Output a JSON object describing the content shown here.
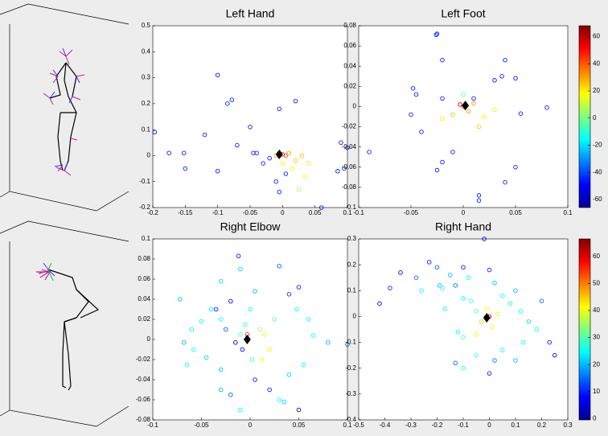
{
  "chart_data": [
    {
      "type": "scatter",
      "title": "Left Hand",
      "xlim": [
        -0.2,
        0.1
      ],
      "xticks": [
        -0.2,
        -0.15,
        -0.1,
        -0.05,
        0,
        0.05,
        0.1
      ],
      "ylim": [
        -0.2,
        0.5
      ],
      "yticks": [
        -0.2,
        -0.1,
        0,
        0.1,
        0.2,
        0.3,
        0.4,
        0.5
      ],
      "clim": [
        -66,
        68
      ],
      "x": [
        -0.197,
        -0.175,
        -0.152,
        -0.15,
        -0.1,
        -0.085,
        -0.078,
        -0.12,
        -0.07,
        -0.05,
        -0.045,
        -0.04,
        -0.1,
        -0.005,
        0.02,
        -0.02,
        -0.01,
        -0.005,
        0.005,
        0.06,
        0.085,
        0.09,
        0.1,
        0.095,
        -0.03,
        0.01,
        0.02,
        0.03,
        0.015,
        0.035,
        0.025,
        0.04,
        0.005,
        0.0,
        -0.01,
        0.0
      ],
      "y": [
        0.09,
        0.01,
        0.01,
        -0.05,
        0.31,
        0.2,
        0.215,
        0.08,
        0.04,
        0.11,
        0.01,
        0.01,
        -0.06,
        0.18,
        0.21,
        -0.01,
        -0.1,
        -0.14,
        -0.07,
        -0.2,
        -0.06,
        0.05,
        0.03,
        -0.05,
        -0.03,
        0.01,
        -0.02,
        0.0,
        -0.05,
        -0.08,
        -0.13,
        -0.03,
        0.0,
        0.005,
        0.0,
        -0.03
      ],
      "c": [
        -45,
        -45,
        -45,
        -45,
        -48,
        -45,
        -45,
        -45,
        -45,
        -45,
        -45,
        -45,
        -45,
        -45,
        -45,
        -45,
        -45,
        -45,
        -45,
        -45,
        -45,
        -45,
        -45,
        -45,
        -45,
        30,
        25,
        25,
        20,
        15,
        5,
        20,
        40,
        50,
        30,
        20
      ],
      "marker": {
        "x": -0.005,
        "y": 0.005
      }
    },
    {
      "type": "scatter",
      "title": "Left Foot",
      "xlim": [
        -0.1,
        0.1
      ],
      "xticks": [
        -0.1,
        -0.05,
        0,
        0.05,
        0.1
      ],
      "ylim": [
        -0.1,
        0.08
      ],
      "yticks": [
        -0.1,
        -0.08,
        -0.06,
        -0.04,
        -0.02,
        0,
        0.02,
        0.04,
        0.06,
        0.08
      ],
      "clim": [
        -66,
        68
      ],
      "colorbar_ticks": [
        -60,
        -40,
        -20,
        0,
        20,
        40,
        60
      ],
      "x": [
        -0.025,
        -0.026,
        -0.02,
        0.04,
        -0.09,
        -0.048,
        -0.045,
        -0.05,
        -0.04,
        -0.02,
        0.01,
        0.03,
        0.037,
        0.05,
        0.08,
        0.055,
        -0.025,
        -0.02,
        -0.01,
        0.05,
        0.04,
        0.015,
        0.015,
        0.0,
        0.0,
        0.005,
        -0.01,
        0.01,
        0.02,
        0.015,
        -0.02,
        0.03,
        -0.003
      ],
      "y": [
        0.072,
        0.071,
        0.046,
        0.046,
        -0.045,
        0.018,
        0.012,
        -0.008,
        -0.025,
        0.008,
        0.008,
        0.026,
        0.03,
        0.028,
        -0.001,
        -0.007,
        -0.063,
        -0.055,
        -0.045,
        -0.06,
        -0.075,
        -0.088,
        -0.093,
        0.012,
        0.0,
        -0.005,
        -0.008,
        0.003,
        -0.01,
        -0.02,
        -0.012,
        -0.003,
        0.002
      ],
      "c": [
        -45,
        -45,
        -45,
        -45,
        -45,
        -45,
        -45,
        -45,
        -45,
        -45,
        -45,
        -45,
        -45,
        -45,
        -45,
        -45,
        -45,
        -45,
        -45,
        -45,
        -45,
        -45,
        -45,
        0,
        35,
        30,
        25,
        30,
        20,
        25,
        20,
        10,
        55
      ],
      "marker": {
        "x": 0.002,
        "y": 0.001
      }
    },
    {
      "type": "scatter",
      "title": "Right Elbow",
      "xlim": [
        -0.1,
        0.1
      ],
      "xticks": [
        -0.1,
        -0.05,
        0,
        0.05,
        0.1
      ],
      "ylim": [
        -0.08,
        0.1
      ],
      "yticks": [
        -0.08,
        -0.06,
        -0.04,
        -0.02,
        0,
        0.02,
        0.04,
        0.06,
        0.08,
        0.1
      ],
      "clim": [
        -0.5,
        66.5
      ],
      "x": [
        -0.072,
        -0.068,
        -0.065,
        -0.06,
        -0.058,
        -0.05,
        -0.045,
        -0.04,
        -0.035,
        -0.03,
        -0.03,
        -0.025,
        -0.02,
        -0.012,
        -0.01,
        -0.015,
        -0.01,
        -0.005,
        0.0,
        0.005,
        0.01,
        0.015,
        0.02,
        0.025,
        0.03,
        0.04,
        0.05,
        0.048,
        0.06,
        0.065,
        0.08,
        0.1,
        0.055,
        0.04,
        0.03,
        0.02,
        0.005,
        -0.01,
        -0.02,
        -0.03,
        -0.03,
        0.05,
        0.035,
        -0.008,
        0.002,
        0.012,
        -0.003
      ],
      "y": [
        0.04,
        -0.003,
        -0.025,
        0.01,
        -0.01,
        0.018,
        -0.018,
        0.03,
        0.03,
        0.02,
        0.058,
        0.01,
        0.038,
        0.083,
        0.07,
        -0.003,
        0.005,
        0.015,
        0.03,
        0.048,
        0.01,
        0.005,
        -0.01,
        0.02,
        0.073,
        0.045,
        0.052,
        0.03,
        0.02,
        0.004,
        -0.003,
        -0.005,
        -0.025,
        -0.035,
        -0.06,
        -0.05,
        -0.04,
        -0.07,
        -0.055,
        -0.03,
        -0.05,
        -0.07,
        -0.062,
        -0.01,
        -0.02,
        -0.02,
        0.005
      ],
      "c": [
        20,
        20,
        25,
        25,
        25,
        25,
        22,
        25,
        10,
        25,
        22,
        15,
        8,
        10,
        22,
        5,
        30,
        28,
        25,
        20,
        35,
        40,
        42,
        30,
        15,
        12,
        10,
        25,
        25,
        25,
        20,
        15,
        25,
        22,
        25,
        10,
        10,
        25,
        15,
        20,
        20,
        8,
        22,
        8,
        28,
        40,
        55
      ],
      "marker": {
        "x": -0.003,
        "y": 0.0
      }
    },
    {
      "type": "scatter",
      "title": "Right Hand",
      "xlim": [
        -0.5,
        0.3
      ],
      "xticks": [
        -0.5,
        -0.4,
        -0.3,
        -0.2,
        -0.1,
        0,
        0.1,
        0.2,
        0.3
      ],
      "ylim": [
        -0.4,
        0.3
      ],
      "yticks": [
        -0.4,
        -0.3,
        -0.2,
        -0.1,
        0,
        0.1,
        0.2,
        0.3
      ],
      "clim": [
        -0.5,
        66.5
      ],
      "colorbar_ticks": [
        0,
        10,
        20,
        30,
        40,
        50,
        60
      ],
      "x": [
        -0.42,
        -0.38,
        -0.34,
        -0.28,
        -0.26,
        -0.23,
        -0.2,
        -0.19,
        -0.18,
        -0.17,
        -0.15,
        -0.13,
        -0.1,
        -0.1,
        -0.08,
        -0.07,
        -0.05,
        -0.02,
        0.0,
        0.02,
        0.05,
        0.08,
        0.1,
        0.12,
        0.15,
        0.18,
        0.2,
        0.25,
        0.23,
        0.13,
        0.1,
        0.05,
        0.02,
        0.0,
        -0.05,
        -0.1,
        -0.12,
        -0.13,
        -0.1,
        -0.05,
        -0.03,
        0.01,
        0.03,
        -0.01,
        0.0
      ],
      "y": [
        0.05,
        0.11,
        0.17,
        0.15,
        0.1,
        0.21,
        0.19,
        0.12,
        0.11,
        0.03,
        0.16,
        0.12,
        0.19,
        0.07,
        0.15,
        0.06,
        0.02,
        0.3,
        0.18,
        0.13,
        0.08,
        0.05,
        0.1,
        0.02,
        -0.02,
        -0.05,
        0.06,
        -0.15,
        -0.1,
        -0.1,
        -0.17,
        -0.13,
        -0.17,
        -0.22,
        -0.15,
        -0.08,
        -0.06,
        -0.18,
        -0.2,
        -0.07,
        -0.02,
        -0.04,
        0.01,
        0.03,
        0.0
      ],
      "c": [
        8,
        10,
        8,
        15,
        25,
        10,
        15,
        20,
        25,
        25,
        20,
        15,
        10,
        25,
        25,
        28,
        30,
        8,
        10,
        20,
        25,
        25,
        20,
        25,
        22,
        25,
        15,
        8,
        10,
        25,
        20,
        25,
        15,
        10,
        28,
        30,
        25,
        15,
        25,
        40,
        45,
        40,
        42,
        40,
        60
      ],
      "marker": {
        "x": -0.01,
        "y": -0.005
      }
    }
  ]
}
